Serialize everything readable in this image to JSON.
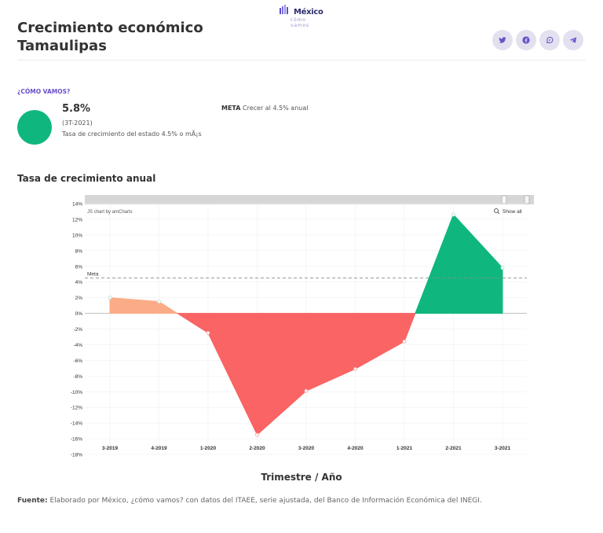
{
  "brand": {
    "name": "México",
    "tagline": "cómo vamos"
  },
  "page": {
    "title_line1": "Crecimiento económico",
    "title_line2": "Tamaulipas"
  },
  "share": [
    {
      "name": "twitter",
      "icon": "twitter-icon"
    },
    {
      "name": "facebook",
      "icon": "facebook-icon"
    },
    {
      "name": "whatsapp",
      "icon": "whatsapp-icon"
    },
    {
      "name": "telegram",
      "icon": "telegram-icon"
    }
  ],
  "status": {
    "section_label": "¿CÓMO VAMOS?",
    "value": "5.8%",
    "period": "(3T-2021)",
    "description": "Tasa de crecimiento del estado 4.5% o mÃ¡s",
    "meta_label": "META",
    "meta_text": "Crecer al 4.5% anual",
    "status_color": "#0fb77f"
  },
  "section": {
    "title": "Tasa de crecimiento anual"
  },
  "chart_data": {
    "type": "area",
    "categories": [
      "3-2019",
      "4-2019",
      "1-2020",
      "2-2020",
      "3-2020",
      "4-2020",
      "1-2021",
      "2-2021",
      "3-2021"
    ],
    "series": [
      {
        "values": [
          2.0,
          1.5,
          -2.5,
          -15.5,
          -9.9,
          -7.1,
          -3.6,
          12.6,
          5.8
        ]
      }
    ],
    "ylim": [
      -18,
      14
    ],
    "yticks": [
      "14%",
      "12%",
      "10%",
      "8%",
      "6%",
      "4%",
      "2%",
      "0%",
      "-2%",
      "-4%",
      "-6%",
      "-8%",
      "-10%",
      "-12%",
      "-14%",
      "-16%",
      "-18%"
    ],
    "goal": {
      "label": "Meta",
      "value": 4.5
    },
    "credit": "JS chart by amCharts",
    "show_all_label": "Show all",
    "xlabel": "Trimestre / Año",
    "colors": {
      "positive": "#0fb77f",
      "negative": "#fa6464",
      "below_goal": "#fbac86"
    },
    "grid": true
  },
  "footer": {
    "label": "Fuente:",
    "text": "Elaborado por México, ¿cómo vamos? con datos del ITAEE, serie ajustada, del Banco de Información Económica del INEGI."
  }
}
